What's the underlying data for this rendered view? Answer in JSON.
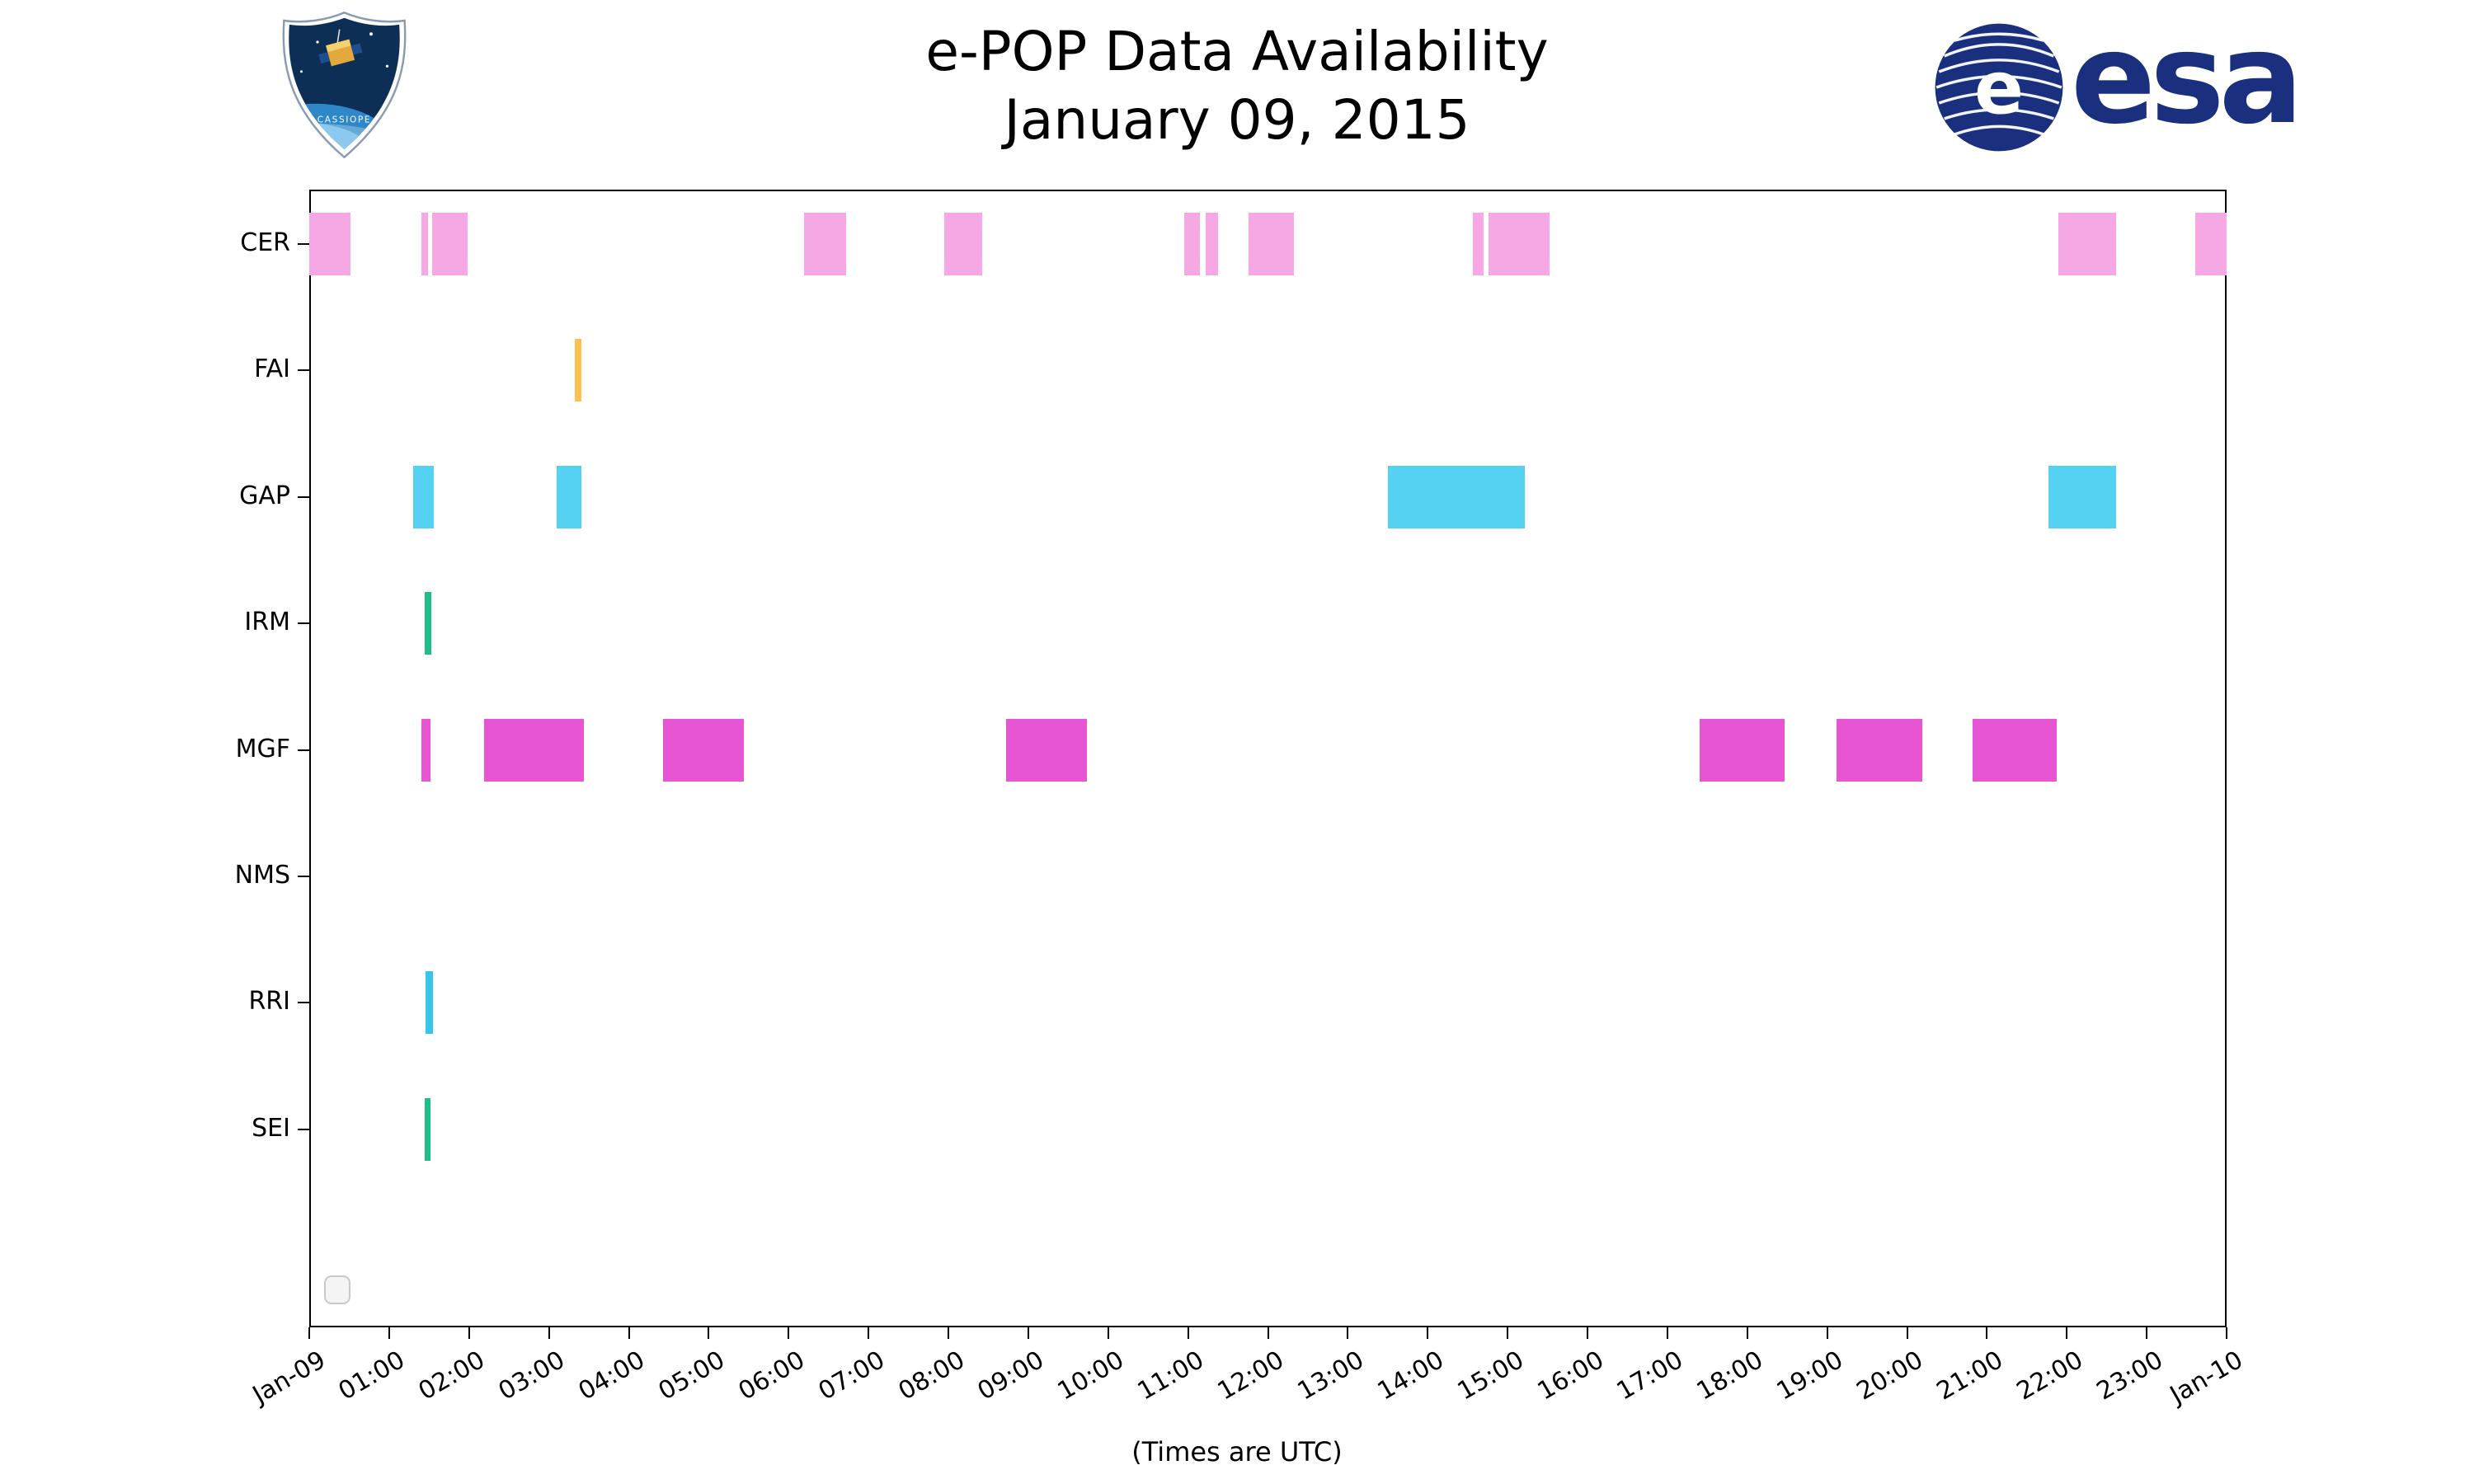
{
  "chart_data": {
    "type": "timeline",
    "title": "e-POP Data Availability",
    "subtitle": "January 09, 2015",
    "xlabel": "(Times are UTC)",
    "grid": false,
    "legend": "none",
    "x_axis": {
      "unit": "hours UTC",
      "range_hours": [
        0,
        24
      ],
      "tick_labels": [
        "Jan-09",
        "01:00",
        "02:00",
        "03:00",
        "04:00",
        "05:00",
        "06:00",
        "07:00",
        "08:00",
        "09:00",
        "10:00",
        "11:00",
        "12:00",
        "13:00",
        "14:00",
        "15:00",
        "16:00",
        "17:00",
        "18:00",
        "19:00",
        "20:00",
        "21:00",
        "22:00",
        "23:00",
        "Jan-10"
      ]
    },
    "rows": [
      {
        "label": "CER",
        "color": "#F5A8E4",
        "intervals": [
          [
            0.0,
            0.52
          ],
          [
            1.4,
            1.49
          ],
          [
            1.54,
            1.98
          ],
          [
            6.19,
            6.72
          ],
          [
            7.95,
            8.42
          ],
          [
            10.95,
            11.15
          ],
          [
            11.22,
            11.38
          ],
          [
            11.76,
            12.32
          ],
          [
            14.56,
            14.7
          ],
          [
            14.76,
            15.52
          ],
          [
            21.89,
            22.62
          ],
          [
            23.61,
            24.0
          ]
        ]
      },
      {
        "label": "FAI",
        "color": "#FCC04E",
        "intervals": [
          [
            3.32,
            3.41
          ]
        ]
      },
      {
        "label": "GAP",
        "color": "#55D1F2",
        "intervals": [
          [
            1.3,
            1.56
          ],
          [
            3.1,
            3.41
          ],
          [
            13.5,
            15.22
          ],
          [
            21.77,
            22.62
          ]
        ]
      },
      {
        "label": "IRM",
        "color": "#1FBE89",
        "intervals": [
          [
            1.45,
            1.53
          ]
        ]
      },
      {
        "label": "MGF",
        "color": "#E755D2",
        "intervals": [
          [
            1.4,
            1.52
          ],
          [
            2.19,
            3.44
          ],
          [
            4.43,
            5.44
          ],
          [
            8.72,
            9.73
          ],
          [
            17.4,
            18.47
          ],
          [
            19.12,
            20.19
          ],
          [
            20.82,
            21.87
          ]
        ]
      },
      {
        "label": "NMS",
        "color": "",
        "intervals": []
      },
      {
        "label": "RRI",
        "color": "#35C6EA",
        "intervals": [
          [
            1.46,
            1.55
          ]
        ]
      },
      {
        "label": "SEI",
        "color": "#1FBE89",
        "intervals": [
          [
            1.44,
            1.52
          ]
        ]
      }
    ]
  },
  "logos": {
    "esa_wordmark": "esa",
    "esa_globe_letter": "e",
    "mission_patch_label": "CASSIOPE"
  }
}
